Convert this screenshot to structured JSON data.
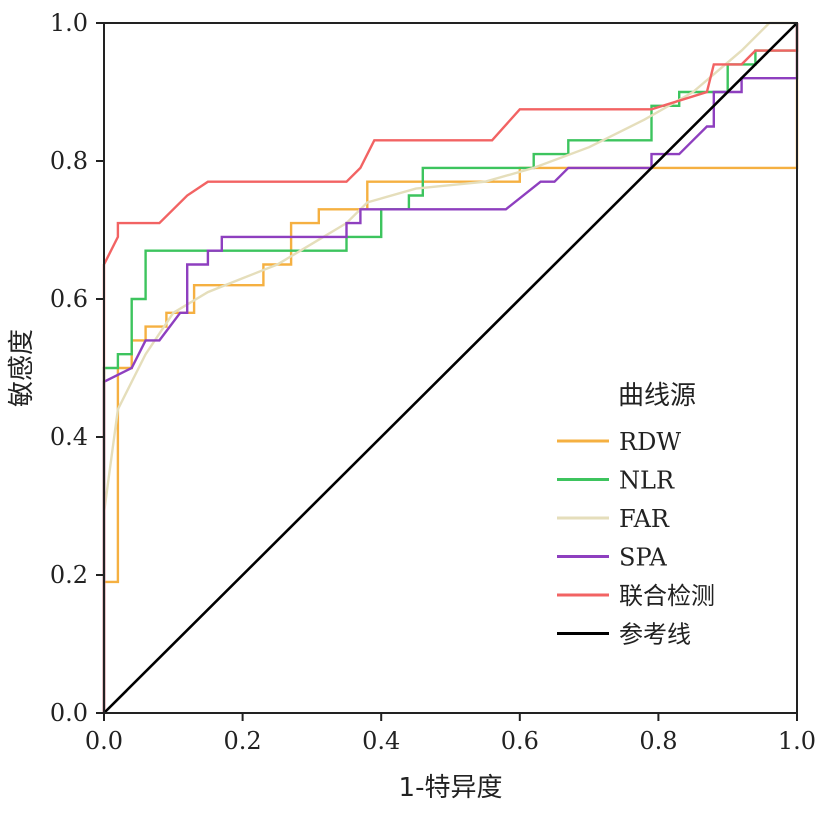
{
  "chart_data": {
    "type": "line",
    "title": "",
    "xlabel": "1-特异度",
    "ylabel": "敏感度",
    "xlim": [
      0,
      1
    ],
    "ylim": [
      0,
      1
    ],
    "x_ticks": [
      0.0,
      0.2,
      0.4,
      0.6,
      0.8,
      1.0
    ],
    "y_ticks": [
      0.0,
      0.2,
      0.4,
      0.6,
      0.8,
      1.0
    ],
    "x_tick_labels": [
      "0.0",
      "0.2",
      "0.4",
      "0.6",
      "0.8",
      "1.0"
    ],
    "y_tick_labels": [
      "0.0",
      "0.2",
      "0.4",
      "0.6",
      "0.8",
      "1.0"
    ],
    "grid": false,
    "legend": {
      "title": "曲线源",
      "position": "center-right"
    },
    "series": [
      {
        "name": "RDW",
        "color": "#F5B041",
        "points": [
          [
            0,
            0
          ],
          [
            0,
            0.19
          ],
          [
            0.02,
            0.19
          ],
          [
            0.02,
            0.5
          ],
          [
            0.04,
            0.5
          ],
          [
            0.04,
            0.54
          ],
          [
            0.06,
            0.54
          ],
          [
            0.06,
            0.56
          ],
          [
            0.09,
            0.56
          ],
          [
            0.09,
            0.58
          ],
          [
            0.13,
            0.58
          ],
          [
            0.13,
            0.62
          ],
          [
            0.23,
            0.62
          ],
          [
            0.23,
            0.65
          ],
          [
            0.27,
            0.65
          ],
          [
            0.27,
            0.71
          ],
          [
            0.31,
            0.71
          ],
          [
            0.31,
            0.73
          ],
          [
            0.38,
            0.73
          ],
          [
            0.38,
            0.77
          ],
          [
            0.6,
            0.77
          ],
          [
            0.6,
            0.79
          ],
          [
            1.0,
            0.79
          ],
          [
            1.0,
            1.0
          ]
        ]
      },
      {
        "name": "NLR",
        "color": "#3DC45E",
        "points": [
          [
            0,
            0
          ],
          [
            0,
            0.5
          ],
          [
            0.02,
            0.5
          ],
          [
            0.02,
            0.52
          ],
          [
            0.04,
            0.52
          ],
          [
            0.04,
            0.6
          ],
          [
            0.06,
            0.6
          ],
          [
            0.06,
            0.67
          ],
          [
            0.35,
            0.67
          ],
          [
            0.35,
            0.69
          ],
          [
            0.4,
            0.69
          ],
          [
            0.4,
            0.73
          ],
          [
            0.44,
            0.73
          ],
          [
            0.44,
            0.75
          ],
          [
            0.46,
            0.75
          ],
          [
            0.46,
            0.79
          ],
          [
            0.62,
            0.79
          ],
          [
            0.62,
            0.81
          ],
          [
            0.67,
            0.81
          ],
          [
            0.67,
            0.83
          ],
          [
            0.79,
            0.83
          ],
          [
            0.79,
            0.88
          ],
          [
            0.83,
            0.88
          ],
          [
            0.83,
            0.9
          ],
          [
            0.9,
            0.9
          ],
          [
            0.9,
            0.94
          ],
          [
            0.94,
            0.94
          ],
          [
            0.94,
            0.96
          ],
          [
            1.0,
            0.96
          ],
          [
            1.0,
            1.0
          ]
        ]
      },
      {
        "name": "FAR",
        "color": "#E5DEBB",
        "points": [
          [
            0,
            0
          ],
          [
            0,
            0.29
          ],
          [
            0.02,
            0.44
          ],
          [
            0.04,
            0.48
          ],
          [
            0.06,
            0.52
          ],
          [
            0.1,
            0.58
          ],
          [
            0.15,
            0.61
          ],
          [
            0.2,
            0.63
          ],
          [
            0.25,
            0.65
          ],
          [
            0.3,
            0.68
          ],
          [
            0.35,
            0.71
          ],
          [
            0.38,
            0.74
          ],
          [
            0.45,
            0.76
          ],
          [
            0.55,
            0.77
          ],
          [
            0.62,
            0.79
          ],
          [
            0.7,
            0.82
          ],
          [
            0.78,
            0.86
          ],
          [
            0.85,
            0.9
          ],
          [
            0.92,
            0.96
          ],
          [
            0.96,
            1.0
          ],
          [
            1.0,
            1.0
          ]
        ]
      },
      {
        "name": "SPA",
        "color": "#8E3FBF",
        "points": [
          [
            0,
            0
          ],
          [
            0,
            0.48
          ],
          [
            0.04,
            0.5
          ],
          [
            0.06,
            0.54
          ],
          [
            0.08,
            0.54
          ],
          [
            0.11,
            0.58
          ],
          [
            0.12,
            0.58
          ],
          [
            0.12,
            0.65
          ],
          [
            0.15,
            0.65
          ],
          [
            0.15,
            0.67
          ],
          [
            0.17,
            0.67
          ],
          [
            0.17,
            0.69
          ],
          [
            0.35,
            0.69
          ],
          [
            0.35,
            0.71
          ],
          [
            0.37,
            0.71
          ],
          [
            0.37,
            0.73
          ],
          [
            0.4,
            0.73
          ],
          [
            0.52,
            0.73
          ],
          [
            0.58,
            0.73
          ],
          [
            0.63,
            0.77
          ],
          [
            0.65,
            0.77
          ],
          [
            0.67,
            0.79
          ],
          [
            0.79,
            0.79
          ],
          [
            0.79,
            0.81
          ],
          [
            0.83,
            0.81
          ],
          [
            0.85,
            0.83
          ],
          [
            0.87,
            0.85
          ],
          [
            0.88,
            0.85
          ],
          [
            0.88,
            0.9
          ],
          [
            0.92,
            0.9
          ],
          [
            0.92,
            0.92
          ],
          [
            1.0,
            0.92
          ],
          [
            1.0,
            1.0
          ]
        ]
      },
      {
        "name": "联合检测",
        "color": "#F26363",
        "points": [
          [
            0,
            0
          ],
          [
            0,
            0.65
          ],
          [
            0.02,
            0.69
          ],
          [
            0.02,
            0.71
          ],
          [
            0.08,
            0.71
          ],
          [
            0.1,
            0.73
          ],
          [
            0.12,
            0.75
          ],
          [
            0.15,
            0.77
          ],
          [
            0.35,
            0.77
          ],
          [
            0.37,
            0.79
          ],
          [
            0.39,
            0.83
          ],
          [
            0.56,
            0.83
          ],
          [
            0.6,
            0.875
          ],
          [
            0.79,
            0.875
          ],
          [
            0.87,
            0.9
          ],
          [
            0.88,
            0.94
          ],
          [
            0.92,
            0.94
          ],
          [
            0.94,
            0.96
          ],
          [
            1.0,
            0.96
          ],
          [
            1.0,
            1.0
          ]
        ]
      },
      {
        "name": "参考线",
        "color": "#000000",
        "points": [
          [
            0,
            0
          ],
          [
            1,
            1
          ]
        ]
      }
    ]
  }
}
